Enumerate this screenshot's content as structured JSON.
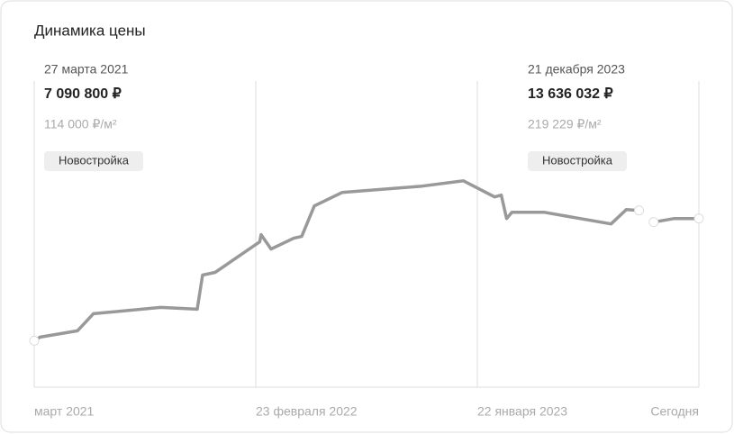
{
  "chart_data": {
    "type": "line",
    "title": "Динамика цены",
    "x": [
      "2021-03-27",
      "2021-04-05",
      "2021-05-31",
      "2021-06-24",
      "2021-10-03",
      "2021-11-27",
      "2021-12-05",
      "2021-12-24",
      "2022-03-01",
      "2022-03-03",
      "2022-03-18",
      "2022-04-21",
      "2022-05-03",
      "2022-05-22",
      "2022-07-03",
      "2022-10-31",
      "2023-01-01",
      "2023-02-17",
      "2023-02-27",
      "2023-03-07",
      "2023-03-15",
      "2023-05-02",
      "2023-08-11",
      "2023-09-03",
      "2023-09-22",
      null,
      "2023-10-14",
      "2023-11-14",
      "2023-12-21"
    ],
    "series": [
      {
        "color": "#999999",
        "values": [
          7090800,
          7283300,
          7620200,
          8534600,
          8871500,
          8775200,
          10604100,
          10748500,
          12384800,
          12769800,
          11999800,
          12577300,
          12673500,
          14309900,
          15031800,
          15368600,
          15657400,
          14791100,
          14887400,
          13636000,
          13973000,
          13973000,
          13347300,
          14117300,
          14069200,
          null,
          13443600,
          13636032,
          13636032
        ]
      }
    ],
    "xlim": [
      "2021-03-27",
      "2023-12-21"
    ],
    "ylim": [
      4600000,
      21000000
    ],
    "xticks": [
      {
        "value": "2021-03-27",
        "label": "март 2021"
      },
      {
        "value": "2022-02-23",
        "label": "23 февраля 2022"
      },
      {
        "value": "2023-01-22",
        "label": "22 января 2023"
      },
      {
        "value": "2023-12-21",
        "label": "Сегодня"
      }
    ],
    "callouts": [
      {
        "date": "27 марта 2021",
        "price": "7 090 800 ₽",
        "per_sqm": "114 000 ₽/м²",
        "badge": "Новостройка"
      },
      {
        "date": "21 декабря 2023",
        "price": "13 636 032 ₽",
        "per_sqm": "219 229 ₽/м²",
        "badge": "Новостройка"
      }
    ]
  }
}
